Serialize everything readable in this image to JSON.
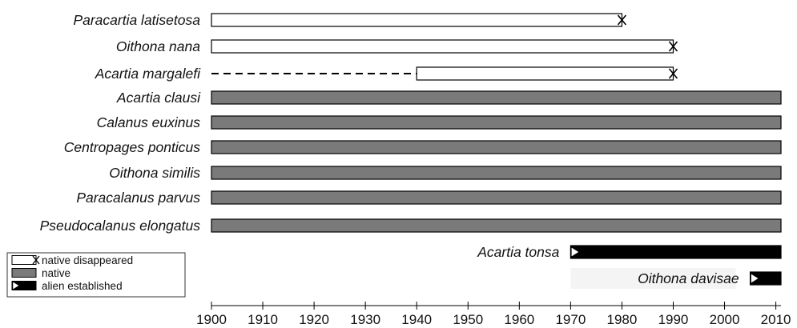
{
  "chart_data": {
    "type": "timeline-bar",
    "title": "",
    "xlabel": "",
    "ylabel": "",
    "xlim": [
      1900,
      2011
    ],
    "x_ticks": [
      "1900",
      "1910",
      "1920",
      "1930",
      "1940",
      "1950",
      "1960",
      "1970",
      "1980",
      "1990",
      "2000",
      "2010"
    ],
    "categories": {
      "native_disappeared": {
        "label": "native disappeared",
        "color": "#ffffff",
        "border": "#000000"
      },
      "native": {
        "label": "native",
        "color": "#7a7a7a",
        "border": "#000000"
      },
      "alien_established": {
        "label": "alien established",
        "color": "#000000",
        "border": "#000000"
      }
    },
    "series": [
      {
        "name": "Paracartia latisetosa",
        "status": "native_disappeared",
        "start": 1900,
        "end": 1980
      },
      {
        "name": "Oithona nana",
        "status": "native_disappeared",
        "start": 1900,
        "end": 1990
      },
      {
        "name": "Acartia margalefi",
        "status": "native_disappeared",
        "dashed_from": 1900,
        "start": 1940,
        "end": 1990
      },
      {
        "name": "Acartia clausi",
        "status": "native",
        "start": 1900,
        "end": 2011
      },
      {
        "name": "Calanus euxinus",
        "status": "native",
        "start": 1900,
        "end": 2011
      },
      {
        "name": "Centropages ponticus",
        "status": "native",
        "start": 1900,
        "end": 2011
      },
      {
        "name": "Oithona similis",
        "status": "native",
        "start": 1900,
        "end": 2011
      },
      {
        "name": "Paracalanus parvus",
        "status": "native",
        "start": 1900,
        "end": 2011
      },
      {
        "name": "Pseudocalanus elongatus",
        "status": "native",
        "start": 1900,
        "end": 2011
      },
      {
        "name": "Acartia tonsa",
        "status": "alien_established",
        "start": 1970,
        "end": 2011
      },
      {
        "name": "Oithona davisae",
        "status": "alien_established",
        "start": 2005,
        "end": 2011
      }
    ],
    "legend": {
      "position": "bottom-left",
      "items": [
        {
          "key": "native_disappeared",
          "label": "native disappeared"
        },
        {
          "key": "native",
          "label": "native"
        },
        {
          "key": "alien_established",
          "label": "alien established"
        }
      ]
    }
  }
}
